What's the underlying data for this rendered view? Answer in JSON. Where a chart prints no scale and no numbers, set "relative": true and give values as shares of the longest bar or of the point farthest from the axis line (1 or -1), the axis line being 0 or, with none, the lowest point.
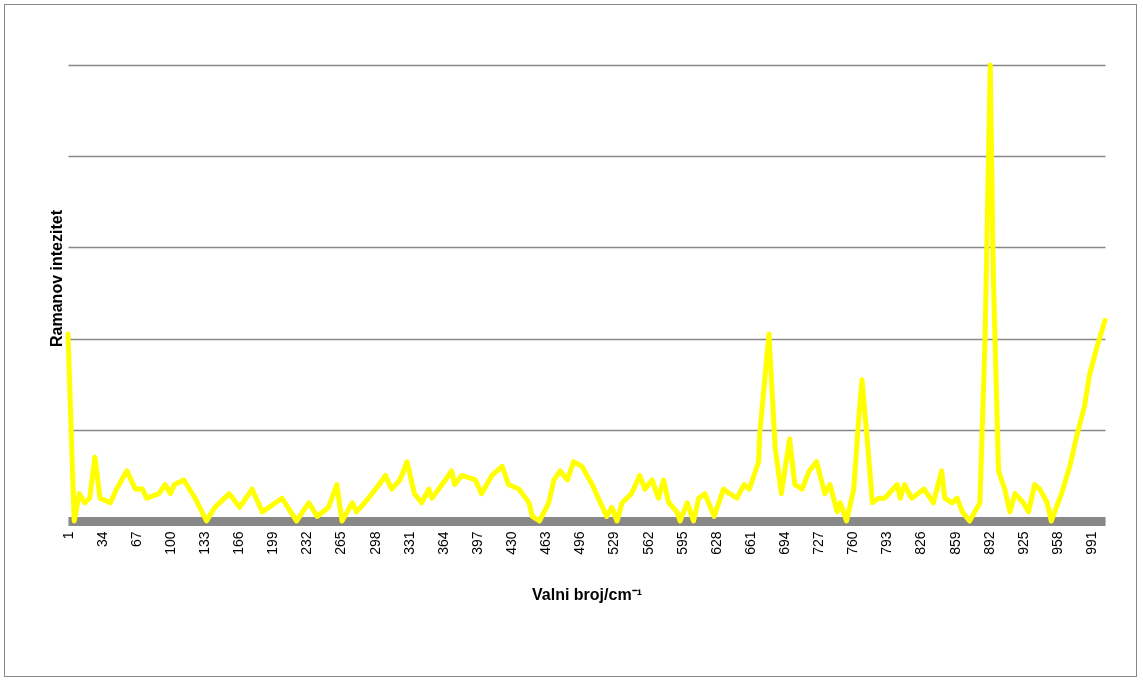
{
  "chart_data": {
    "type": "line",
    "xlabel": "Valni broj/cm⁻¹",
    "ylabel": "Ramanov intezitet",
    "relative": true,
    "grid": true,
    "color": "#ffff00",
    "xlim": [
      1,
      1004
    ],
    "xticks": [
      1,
      34,
      67,
      100,
      133,
      166,
      199,
      232,
      265,
      298,
      331,
      364,
      397,
      430,
      463,
      496,
      529,
      562,
      595,
      628,
      661,
      694,
      727,
      760,
      793,
      826,
      859,
      892,
      925,
      958,
      991
    ],
    "x": [
      1,
      7,
      12,
      17,
      22,
      27,
      32,
      42,
      48,
      58,
      66,
      73,
      77,
      89,
      95,
      100,
      104,
      113,
      124,
      135,
      143,
      157,
      167,
      179,
      189,
      208,
      222,
      234,
      242,
      253,
      261,
      266,
      276,
      280,
      288,
      302,
      308,
      314,
      322,
      329,
      336,
      343,
      350,
      353,
      366,
      372,
      375,
      382,
      395,
      401,
      411,
      421,
      427,
      437,
      447,
      450,
      457,
      466,
      471,
      477,
      484,
      490,
      498,
      508,
      514,
      522,
      527,
      532,
      537,
      546,
      554,
      559,
      566,
      572,
      577,
      582,
      590,
      593,
      600,
      606,
      611,
      617,
      626,
      635,
      641,
      648,
      655,
      660,
      669,
      670,
      679,
      685,
      691,
      699,
      704,
      711,
      718,
      725,
      733,
      738,
      745,
      748,
      754,
      761,
      766,
      769,
      774,
      779,
      785,
      791,
      803,
      806,
      810,
      817,
      829,
      838,
      846,
      849,
      856,
      861,
      866,
      873,
      878,
      883,
      888,
      893,
      896,
      901,
      907,
      912,
      917,
      925,
      930,
      936,
      941,
      948,
      952,
      962,
      970,
      977,
      984,
      989,
      996,
      1004
    ],
    "values": [
      0.41,
      0,
      0.06,
      0.04,
      0.05,
      0.14,
      0.05,
      0.04,
      0.07,
      0.11,
      0.07,
      0.07,
      0.05,
      0.06,
      0.08,
      0.06,
      0.08,
      0.09,
      0.05,
      0,
      0.03,
      0.06,
      0.03,
      0.07,
      0.02,
      0.05,
      0,
      0.04,
      0.01,
      0.03,
      0.08,
      0,
      0.04,
      0.02,
      0.04,
      0.08,
      0.1,
      0.07,
      0.09,
      0.13,
      0.06,
      0.04,
      0.07,
      0.05,
      0.09,
      0.11,
      0.08,
      0.1,
      0.09,
      0.06,
      0.1,
      0.12,
      0.08,
      0.07,
      0.04,
      0.01,
      0,
      0.04,
      0.09,
      0.11,
      0.09,
      0.13,
      0.12,
      0.08,
      0.05,
      0.01,
      0.03,
      0,
      0.04,
      0.06,
      0.1,
      0.07,
      0.09,
      0.05,
      0.09,
      0.04,
      0.02,
      0,
      0.04,
      0,
      0.05,
      0.06,
      0.01,
      0.07,
      0.06,
      0.05,
      0.08,
      0.07,
      0.13,
      0.19,
      0.41,
      0.16,
      0.06,
      0.18,
      0.08,
      0.07,
      0.11,
      0.13,
      0.06,
      0.08,
      0.02,
      0.04,
      0,
      0.07,
      0.23,
      0.31,
      0.18,
      0.04,
      0.05,
      0.05,
      0.08,
      0.05,
      0.08,
      0.05,
      0.07,
      0.04,
      0.11,
      0.05,
      0.04,
      0.05,
      0.02,
      0,
      0.02,
      0.04,
      0.4,
      1,
      0.54,
      0.11,
      0.07,
      0.02,
      0.06,
      0.04,
      0.02,
      0.08,
      0.07,
      0.04,
      0,
      0.06,
      0.12,
      0.19,
      0.25,
      0.32,
      0.38,
      0.44
    ]
  }
}
